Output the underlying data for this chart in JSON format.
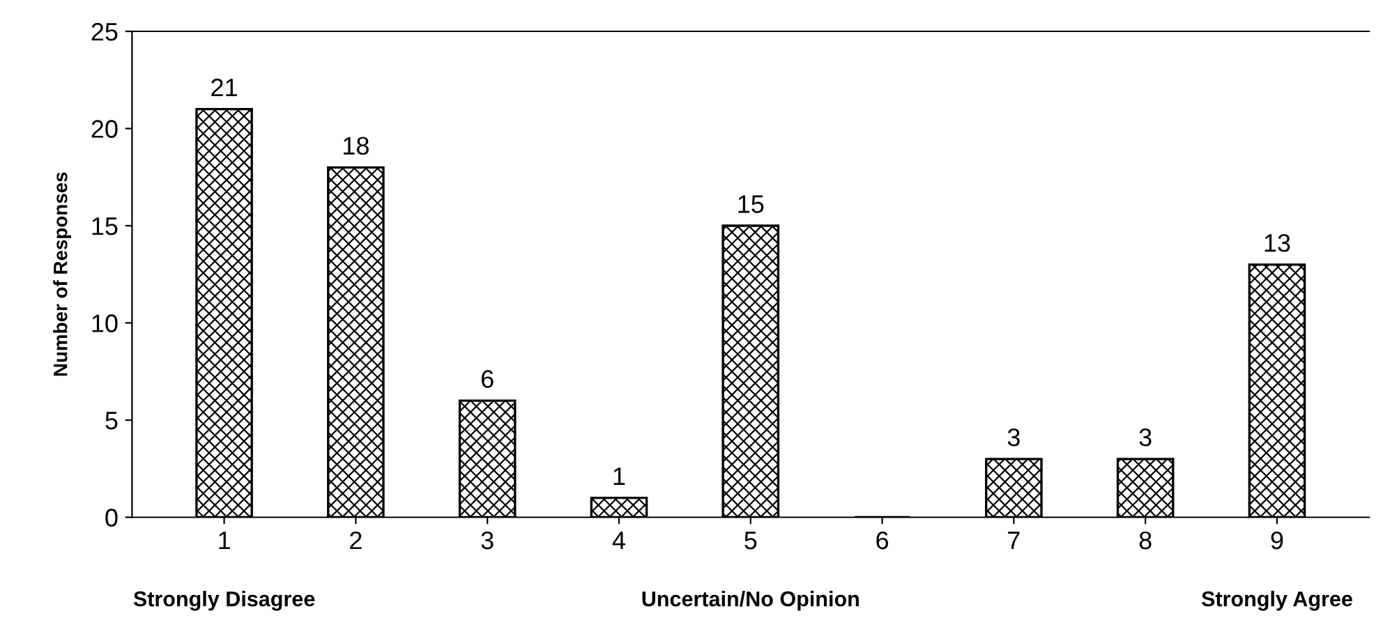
{
  "chart_data": {
    "type": "bar",
    "ylabel": "Number of Responses",
    "categories": [
      "1",
      "2",
      "3",
      "4",
      "5",
      "6",
      "7",
      "8",
      "9"
    ],
    "values": [
      21,
      18,
      6,
      1,
      15,
      0,
      3,
      3,
      13
    ],
    "value_labels": [
      "21",
      "18",
      "6",
      "1",
      "15",
      null,
      "3",
      "3",
      "13"
    ],
    "color": "#000000",
    "ylim": [
      0,
      25
    ],
    "yticks": [
      0,
      5,
      10,
      15,
      20,
      25
    ],
    "grid": false,
    "legend": false,
    "annotations": [
      "Strongly Disagree",
      "Uncertain/No Opinion",
      "Strongly Agree"
    ]
  }
}
